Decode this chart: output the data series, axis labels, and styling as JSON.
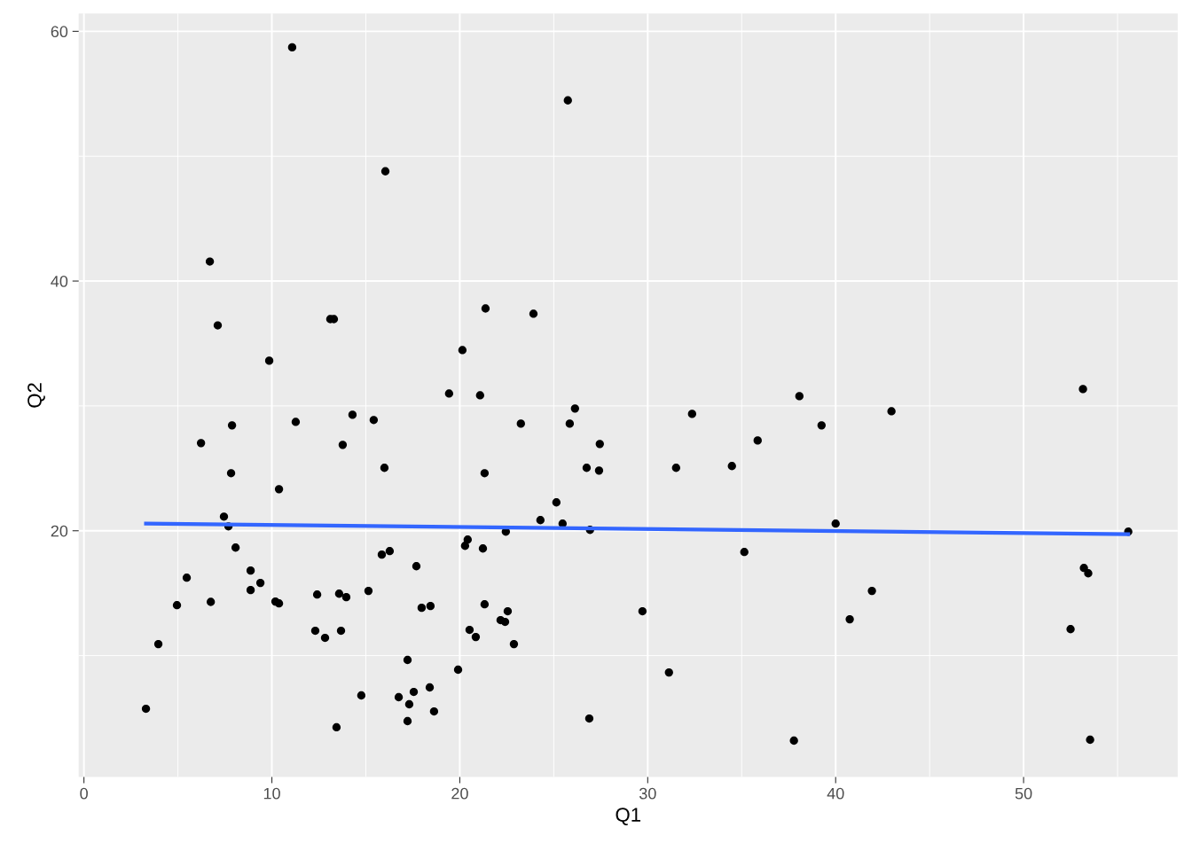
{
  "chart_data": {
    "type": "scatter",
    "xlabel": "Q1",
    "ylabel": "Q2",
    "xlim": [
      -0.28,
      58.2
    ],
    "ylim": [
      0.28,
      61.42
    ],
    "xticks": [
      0,
      {
        "value": 5,
        "label": null
      },
      10,
      {
        "value": 15,
        "label": null
      },
      20,
      {
        "value": 25,
        "label": null
      },
      30,
      {
        "value": 35,
        "label": null
      },
      40,
      {
        "value": 45,
        "label": null
      },
      50,
      {
        "value": 55,
        "label": null
      }
    ],
    "yticks": [
      {
        "value": 10,
        "label": null
      },
      20,
      {
        "value": 30,
        "label": null
      },
      40,
      {
        "value": 50,
        "label": null
      },
      60
    ],
    "grid": true,
    "marker": "circle",
    "legend": false,
    "series": [
      {
        "color": "#000000",
        "x": [
          3.3,
          3.96,
          4.95,
          5.47,
          6.23,
          6.7,
          6.75,
          7.12,
          7.45,
          7.69,
          7.83,
          7.88,
          8.07,
          8.87,
          8.87,
          9.39,
          9.86,
          10.19,
          10.38,
          10.38,
          11.08,
          11.27,
          12.31,
          12.41,
          12.83,
          13.11,
          13.3,
          13.44,
          13.58,
          13.68,
          13.77,
          13.96,
          14.29,
          14.76,
          15.14,
          15.42,
          15.85,
          15.99,
          16.04,
          16.27,
          16.75,
          17.22,
          17.22,
          17.31,
          17.55,
          17.69,
          17.97,
          18.44,
          18.4,
          18.63,
          19.43,
          19.91,
          20.14,
          20.28,
          20.42,
          20.52,
          20.85,
          21.08,
          21.23,
          21.32,
          21.32,
          21.37,
          22.17,
          22.41,
          22.45,
          22.55,
          22.88,
          23.25,
          23.92,
          24.29,
          25.14,
          25.47,
          25.75,
          25.85,
          26.13,
          26.75,
          26.89,
          26.93,
          27.41,
          27.45,
          29.72,
          31.13,
          31.51,
          32.36,
          34.48,
          35.14,
          35.85,
          37.78,
          38.07,
          39.25,
          40.0,
          40.75,
          41.93,
          42.97,
          52.5,
          53.16,
          53.21,
          53.44,
          53.54,
          55.57
        ],
        "values": [
          5.74,
          10.92,
          14.04,
          16.24,
          27.02,
          41.56,
          14.3,
          36.45,
          21.13,
          20.35,
          24.61,
          28.44,
          18.65,
          16.81,
          15.25,
          15.82,
          33.62,
          14.33,
          14.18,
          23.33,
          58.72,
          28.72,
          11.99,
          14.89,
          11.42,
          36.95,
          36.95,
          4.26,
          14.96,
          11.99,
          26.88,
          14.68,
          29.29,
          6.81,
          15.18,
          28.87,
          18.09,
          25.04,
          48.79,
          18.37,
          6.67,
          9.65,
          4.75,
          6.1,
          7.09,
          17.16,
          13.83,
          13.97,
          7.45,
          5.53,
          30.99,
          8.87,
          34.47,
          18.79,
          19.29,
          12.06,
          11.49,
          30.85,
          18.58,
          24.61,
          14.11,
          37.8,
          12.84,
          12.7,
          19.93,
          13.55,
          10.92,
          28.58,
          37.38,
          20.85,
          22.27,
          20.57,
          54.47,
          28.58,
          29.79,
          25.04,
          4.96,
          20.07,
          24.82,
          26.95,
          13.55,
          8.65,
          25.04,
          29.36,
          25.18,
          18.3,
          27.23,
          3.19,
          30.78,
          28.44,
          20.57,
          12.91,
          15.18,
          29.57,
          12.12,
          31.35,
          17.02,
          16.59,
          3.26,
          19.93
        ]
      },
      {
        "type": "line",
        "color": "#3366ff",
        "marker": "none",
        "x": [
          3.3,
          55.57
        ],
        "values": [
          20.57,
          19.72
        ]
      }
    ]
  }
}
